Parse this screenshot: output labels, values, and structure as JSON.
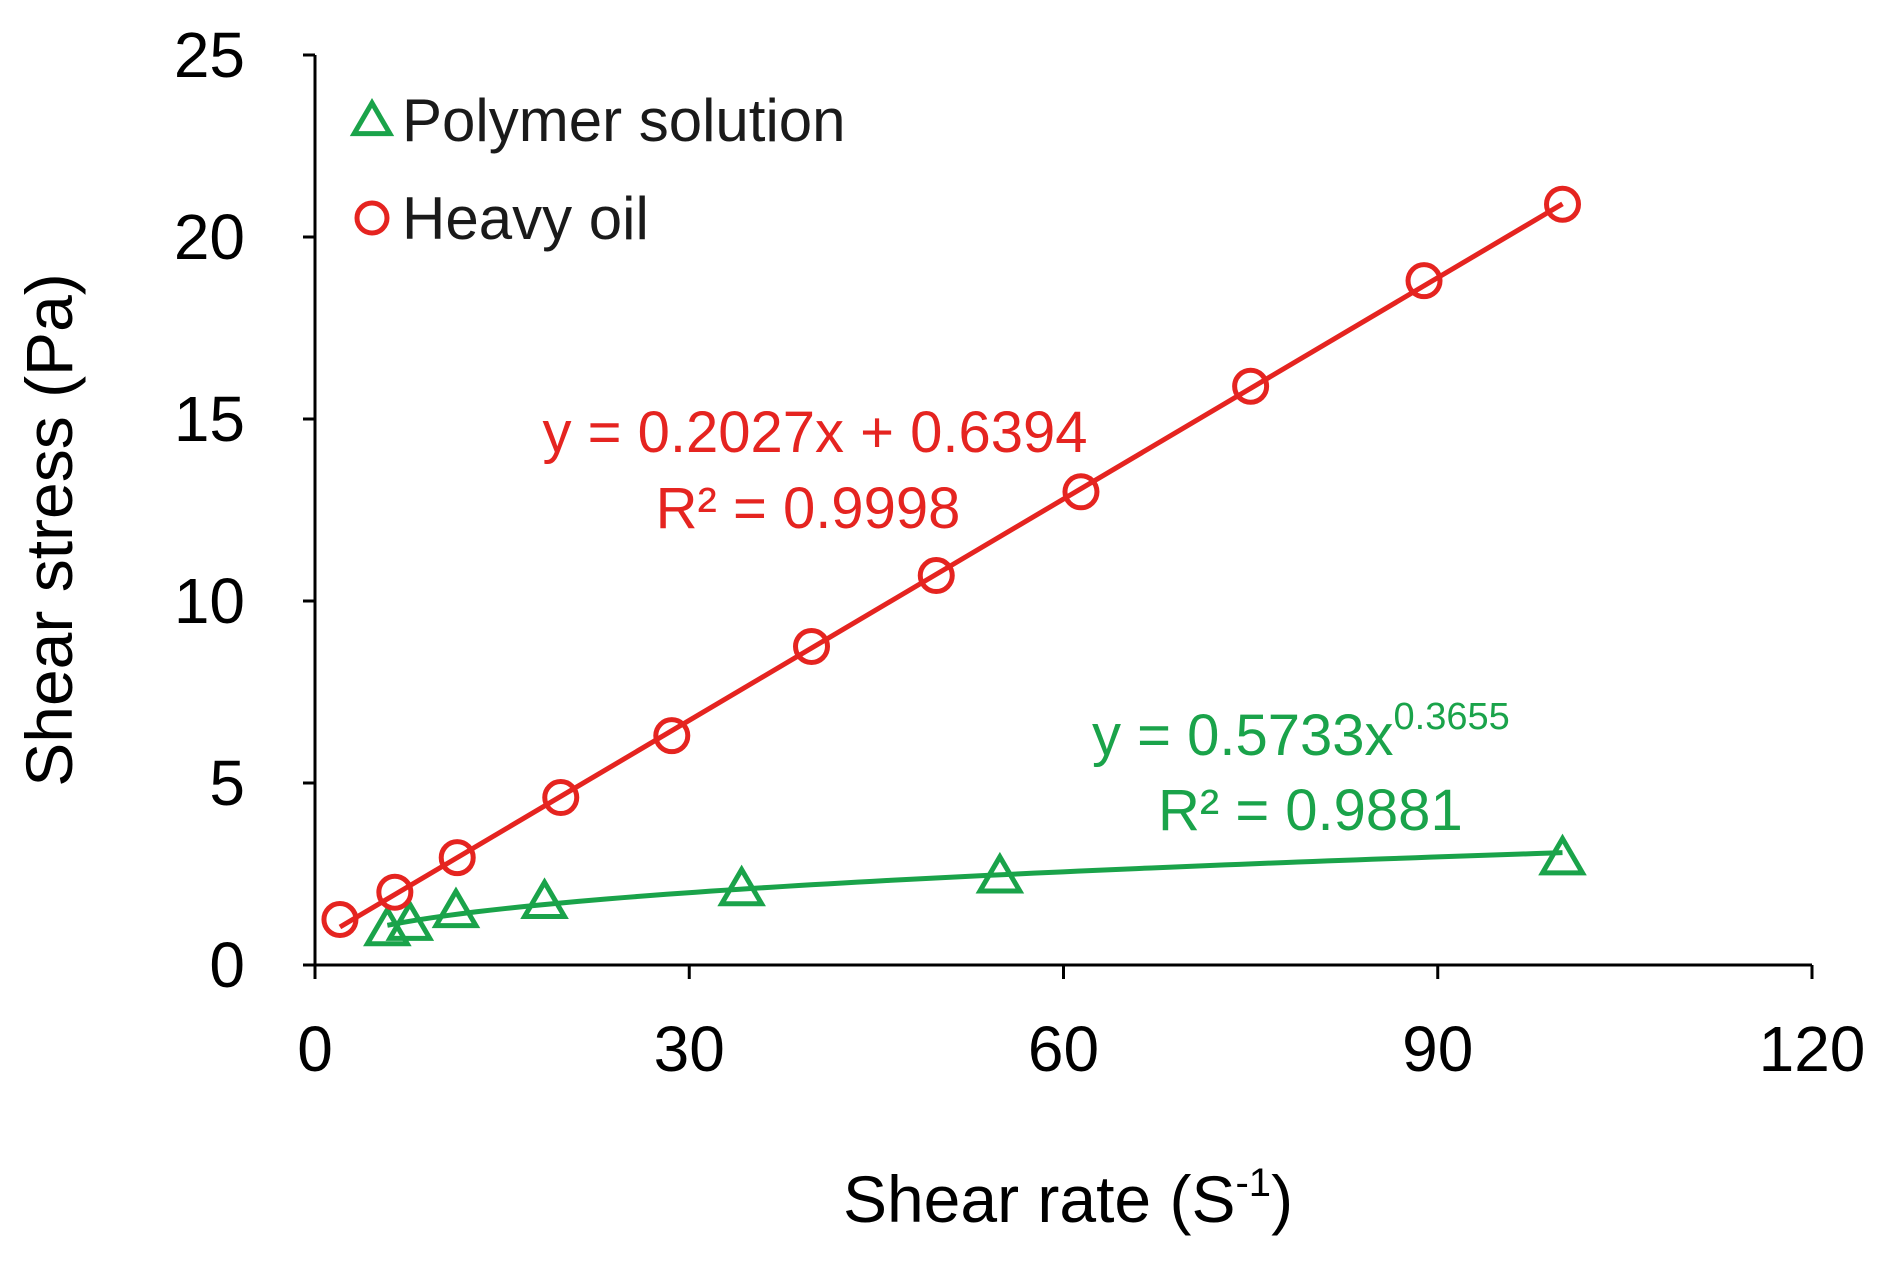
{
  "chart_data": {
    "type": "scatter",
    "xlabel": "Shear rate (S-1)",
    "xlabel_main": "Shear rate (S",
    "xlabel_sup": "-1",
    "xlabel_end": ")",
    "ylabel": "Shear stress (Pa)",
    "xlim": [
      0,
      120
    ],
    "ylim": [
      0,
      25
    ],
    "x_ticks": [
      0,
      30,
      60,
      90,
      120
    ],
    "y_ticks": [
      0,
      5,
      10,
      15,
      20,
      25
    ],
    "x_tick_labels": [
      "0",
      "30",
      "60",
      "90",
      "120"
    ],
    "y_tick_labels": [
      "0",
      "5",
      "10",
      "15",
      "20",
      "25"
    ],
    "grid": false,
    "legend_position": "top-left",
    "series": [
      {
        "name": "Polymer solution",
        "marker": "triangle",
        "color": "#1aa34a",
        "x": [
          5.8,
          7.6,
          11.3,
          18.4,
          34.2,
          54.9,
          100.0
        ],
        "y": [
          1.0,
          1.15,
          1.5,
          1.75,
          2.1,
          2.45,
          2.95
        ],
        "fit": {
          "kind": "power",
          "a": 0.5733,
          "b": 0.3655,
          "x_range": [
            5.8,
            100.0
          ],
          "equation_main": "y = 0.5733x",
          "equation_sup": "0.3655",
          "r2_label": "R² = 0.9881"
        }
      },
      {
        "name": "Heavy oil",
        "marker": "circle",
        "color": "#e52420",
        "x": [
          2.0,
          6.4,
          11.4,
          19.7,
          28.6,
          39.8,
          49.8,
          61.4,
          75.0,
          88.9,
          100.0
        ],
        "y": [
          1.25,
          2.0,
          2.95,
          4.6,
          6.3,
          8.75,
          10.7,
          13.0,
          15.9,
          18.8,
          20.9
        ],
        "fit": {
          "kind": "linear",
          "slope": 0.2027,
          "intercept": 0.6394,
          "x_range": [
            2.0,
            100.0
          ],
          "equation": "y = 0.2027x + 0.6394",
          "r2_label": "R² = 0.9998"
        }
      }
    ]
  }
}
